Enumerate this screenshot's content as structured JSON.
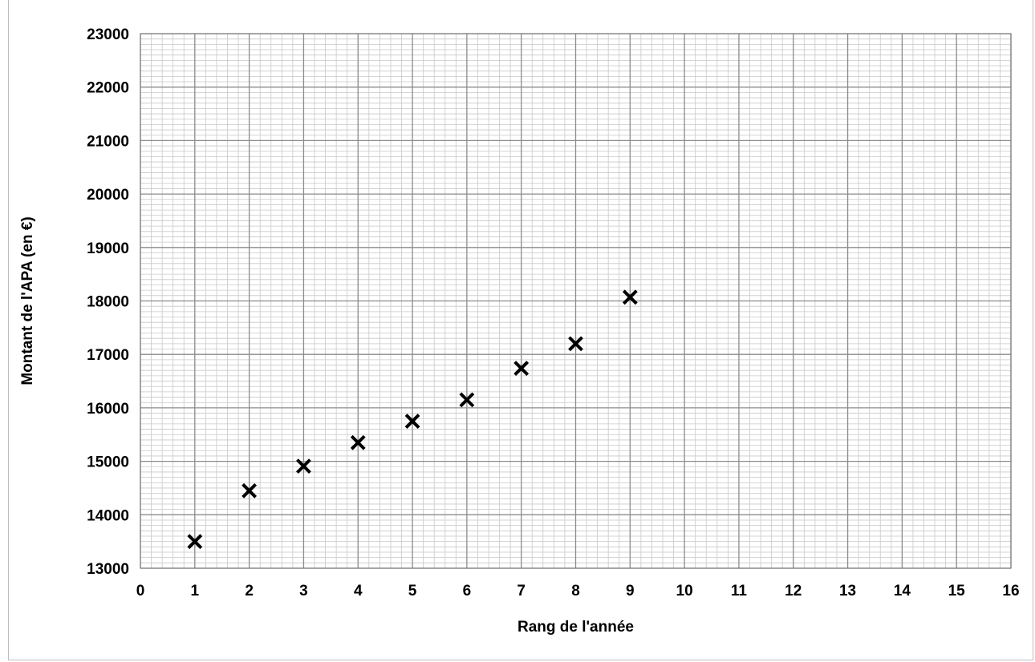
{
  "chart_data": {
    "type": "scatter",
    "title": "",
    "xlabel": "Rang de l'année",
    "ylabel": "Montant de l'APA (en €)",
    "xlim": [
      0,
      16
    ],
    "ylim": [
      13000,
      23000
    ],
    "xticks": [
      0,
      1,
      2,
      3,
      4,
      5,
      6,
      7,
      8,
      9,
      10,
      11,
      12,
      13,
      14,
      15,
      16
    ],
    "yticks": [
      13000,
      14000,
      15000,
      16000,
      17000,
      18000,
      19000,
      20000,
      21000,
      22000,
      23000
    ],
    "grid": true,
    "marker": "x",
    "series": [
      {
        "x": [
          1,
          2,
          3,
          4,
          5,
          6,
          7,
          8,
          9
        ],
        "y": [
          13500,
          14450,
          14910,
          15350,
          15750,
          16150,
          16740,
          17200,
          18070
        ]
      }
    ]
  }
}
